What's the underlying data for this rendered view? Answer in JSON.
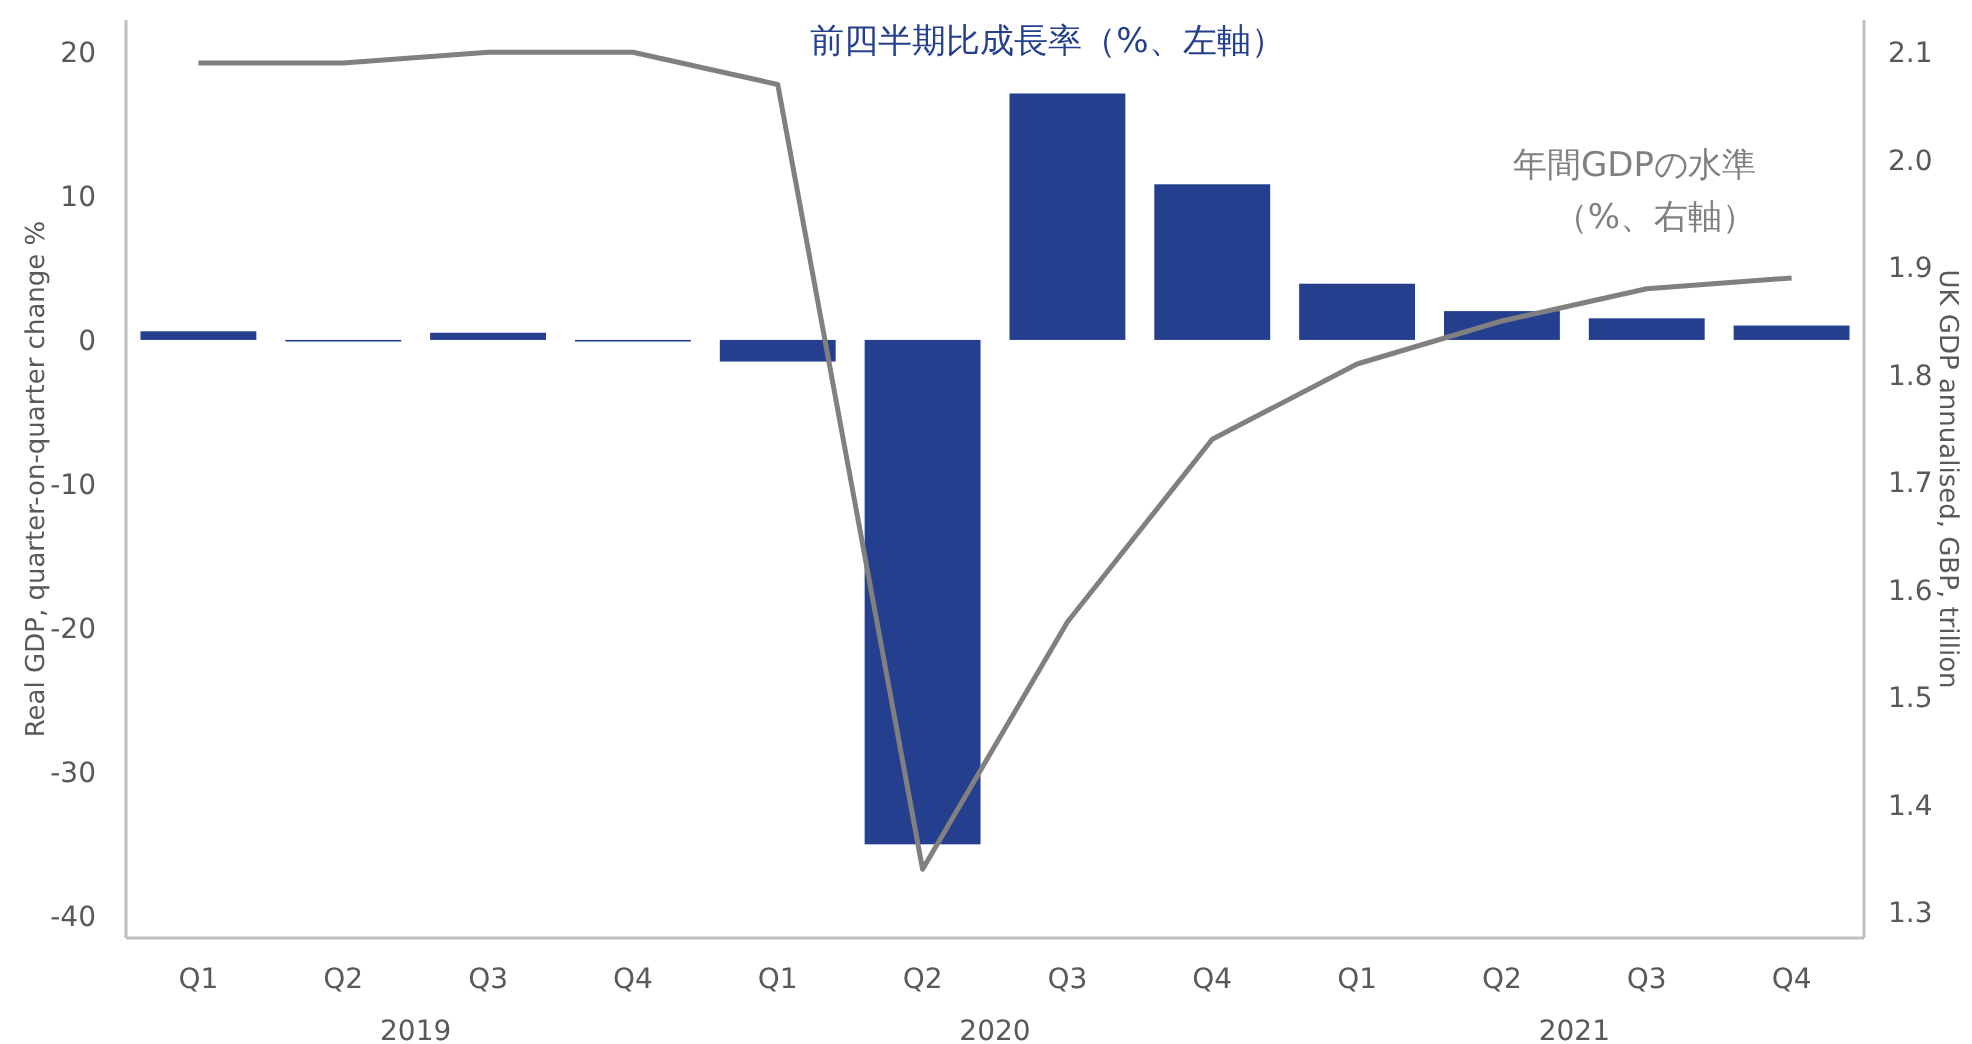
{
  "chart_data": {
    "type": "bar",
    "categories": [
      "Q1",
      "Q2",
      "Q3",
      "Q4",
      "Q1",
      "Q2",
      "Q3",
      "Q4",
      "Q1",
      "Q2",
      "Q3",
      "Q4"
    ],
    "ylabel": "Real GDP, quarter-on-quarter change %",
    "y2label": "UK GDP annualised, GBP, trillion",
    "annotations": [
      "2019",
      "2020",
      "2021"
    ],
    "series": [
      {
        "name": "前四半期比成長率（%、左軸）",
        "color": "#253f8f",
        "values": [
          0.6,
          -0.1,
          0.5,
          0.0,
          -1.5,
          -35.0,
          17.1,
          10.8,
          3.9,
          2.0,
          1.5,
          1.0
        ]
      },
      {
        "name": "年間GDPの水準（%、右軸）",
        "type": "line",
        "axis": "y2",
        "color": "#808080",
        "values": [
          2.09,
          2.09,
          2.1,
          2.1,
          2.07,
          1.34,
          1.57,
          1.74,
          1.81,
          1.85,
          1.88,
          1.89
        ]
      }
    ],
    "ylim": [
      -41.5,
      22.2
    ],
    "yticks": [
      -40,
      -30,
      -20,
      -10,
      0,
      10,
      20
    ],
    "y2lim": [
      1.276,
      2.13
    ],
    "y2ticks": [
      1.3,
      1.4,
      1.5,
      1.6,
      1.7,
      1.8,
      1.9,
      {
        "value": 2.0,
        "label": "2.0"
      },
      2.1
    ],
    "grid": false,
    "line_style": "solid",
    "marker": "none"
  }
}
